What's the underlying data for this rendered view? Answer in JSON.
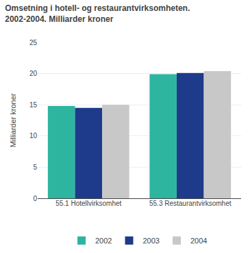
{
  "chart_data": {
    "type": "bar",
    "title": "Omsetning i hotell- og restaurantvirksomheten.",
    "subtitle": "2002-2004. Milliarder kroner",
    "ylabel": "Milliarder kroner",
    "categories": [
      "55.1 Hotellvirksomhet",
      "55.3 Restaurantvirksomhet"
    ],
    "series": [
      {
        "name": "2002",
        "color": "#2db5a0",
        "values": [
          14.8,
          19.9
        ]
      },
      {
        "name": "2003",
        "color": "#1e3a8a",
        "values": [
          14.5,
          20.1
        ]
      },
      {
        "name": "2004",
        "color": "#c8c8c8",
        "values": [
          15.0,
          20.4
        ]
      }
    ],
    "ylim": [
      0,
      25
    ],
    "yticks": [
      0,
      5,
      10,
      15,
      20,
      25
    ],
    "grid": true,
    "legend": "bottom"
  }
}
